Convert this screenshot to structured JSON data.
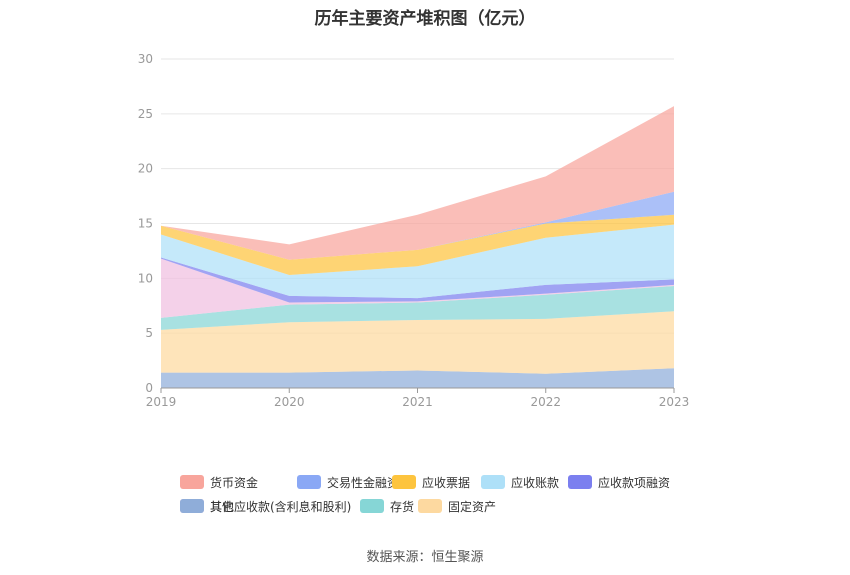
{
  "chart_data": {
    "type": "area",
    "stacked": true,
    "title": "历年主要资产堆积图（亿元）",
    "categories": [
      "2019",
      "2020",
      "2021",
      "2022",
      "2023"
    ],
    "ylim": [
      0,
      30
    ],
    "yticks": [
      0,
      5,
      10,
      15,
      20,
      25,
      30
    ],
    "grid": true,
    "legend_position": "bottom",
    "series": [
      {
        "name": "其它",
        "color": "#8fadd9",
        "values": [
          1.4,
          1.4,
          1.6,
          1.3,
          1.8
        ]
      },
      {
        "name": "固定资产",
        "color": "#fdd9a0",
        "values": [
          3.9,
          4.6,
          4.6,
          5.0,
          5.2
        ]
      },
      {
        "name": "存货",
        "color": "#86d6d6",
        "values": [
          1.1,
          1.6,
          1.6,
          2.2,
          2.3
        ]
      },
      {
        "name": "其他应收款(含利息和股利)",
        "color": "#f0bfe0",
        "values": [
          5.4,
          0.2,
          0.1,
          0.1,
          0.1
        ]
      },
      {
        "name": "应收款项融资",
        "color": "#7b7fef",
        "values": [
          0.1,
          0.6,
          0.3,
          0.8,
          0.5
        ]
      },
      {
        "name": "应收账款",
        "color": "#aee0f8",
        "values": [
          2.1,
          1.9,
          2.9,
          4.3,
          5.0
        ]
      },
      {
        "name": "应收票据",
        "color": "#fdc43e",
        "values": [
          0.8,
          1.4,
          1.5,
          1.3,
          0.9
        ]
      },
      {
        "name": "交易性金融资产",
        "color": "#8aa8f5",
        "values": [
          0.0,
          0.0,
          0.0,
          0.1,
          2.1
        ]
      },
      {
        "name": "货币资金",
        "color": "#f8a59c",
        "values": [
          0.0,
          1.4,
          3.2,
          4.2,
          7.8
        ]
      }
    ],
    "legend_order": [
      "货币资金",
      "交易性金融资产",
      "应收票据",
      "应收账款",
      "应收款项融资",
      "其他应收款(含利息和股利)",
      "存货",
      "固定资产",
      "其它"
    ]
  },
  "source": "数据来源：恒生聚源"
}
